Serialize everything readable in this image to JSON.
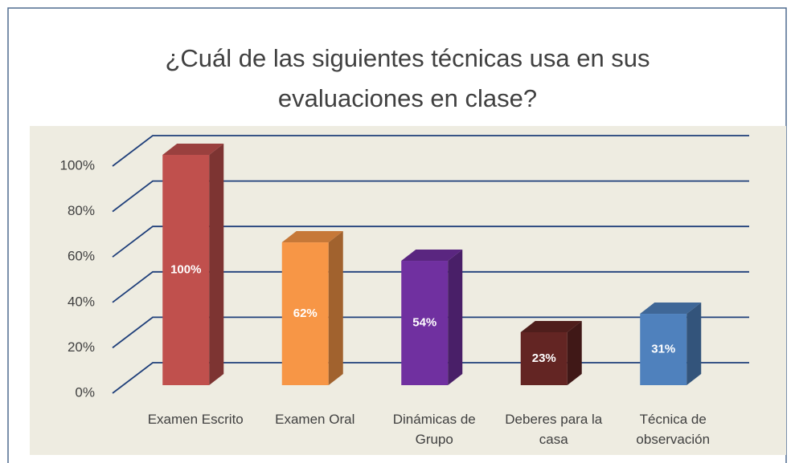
{
  "chart_data": {
    "type": "bar3d",
    "title": "¿Cuál de las siguientes técnicas usa en sus evaluaciones en clase?",
    "categories": [
      "Examen Escrito",
      "Examen Oral",
      "Dinámicas de Grupo",
      "Deberes para la casa",
      "Técnica de observación"
    ],
    "values": [
      100,
      62,
      54,
      23,
      31
    ],
    "value_labels": [
      "100%",
      "62%",
      "54%",
      "23%",
      "31%"
    ],
    "colors": [
      "#c0504d",
      "#f79646",
      "#7030a0",
      "#632523",
      "#4f81bd"
    ],
    "ylim": [
      0,
      100
    ],
    "yticks": [
      {
        "value": 0,
        "label": "0%"
      },
      {
        "value": 20,
        "label": "20%"
      },
      {
        "value": 40,
        "label": "40%"
      },
      {
        "value": 60,
        "label": "60%"
      },
      {
        "value": 80,
        "label": "80%"
      },
      {
        "value": 100,
        "label": "100%"
      }
    ],
    "grid": true
  }
}
